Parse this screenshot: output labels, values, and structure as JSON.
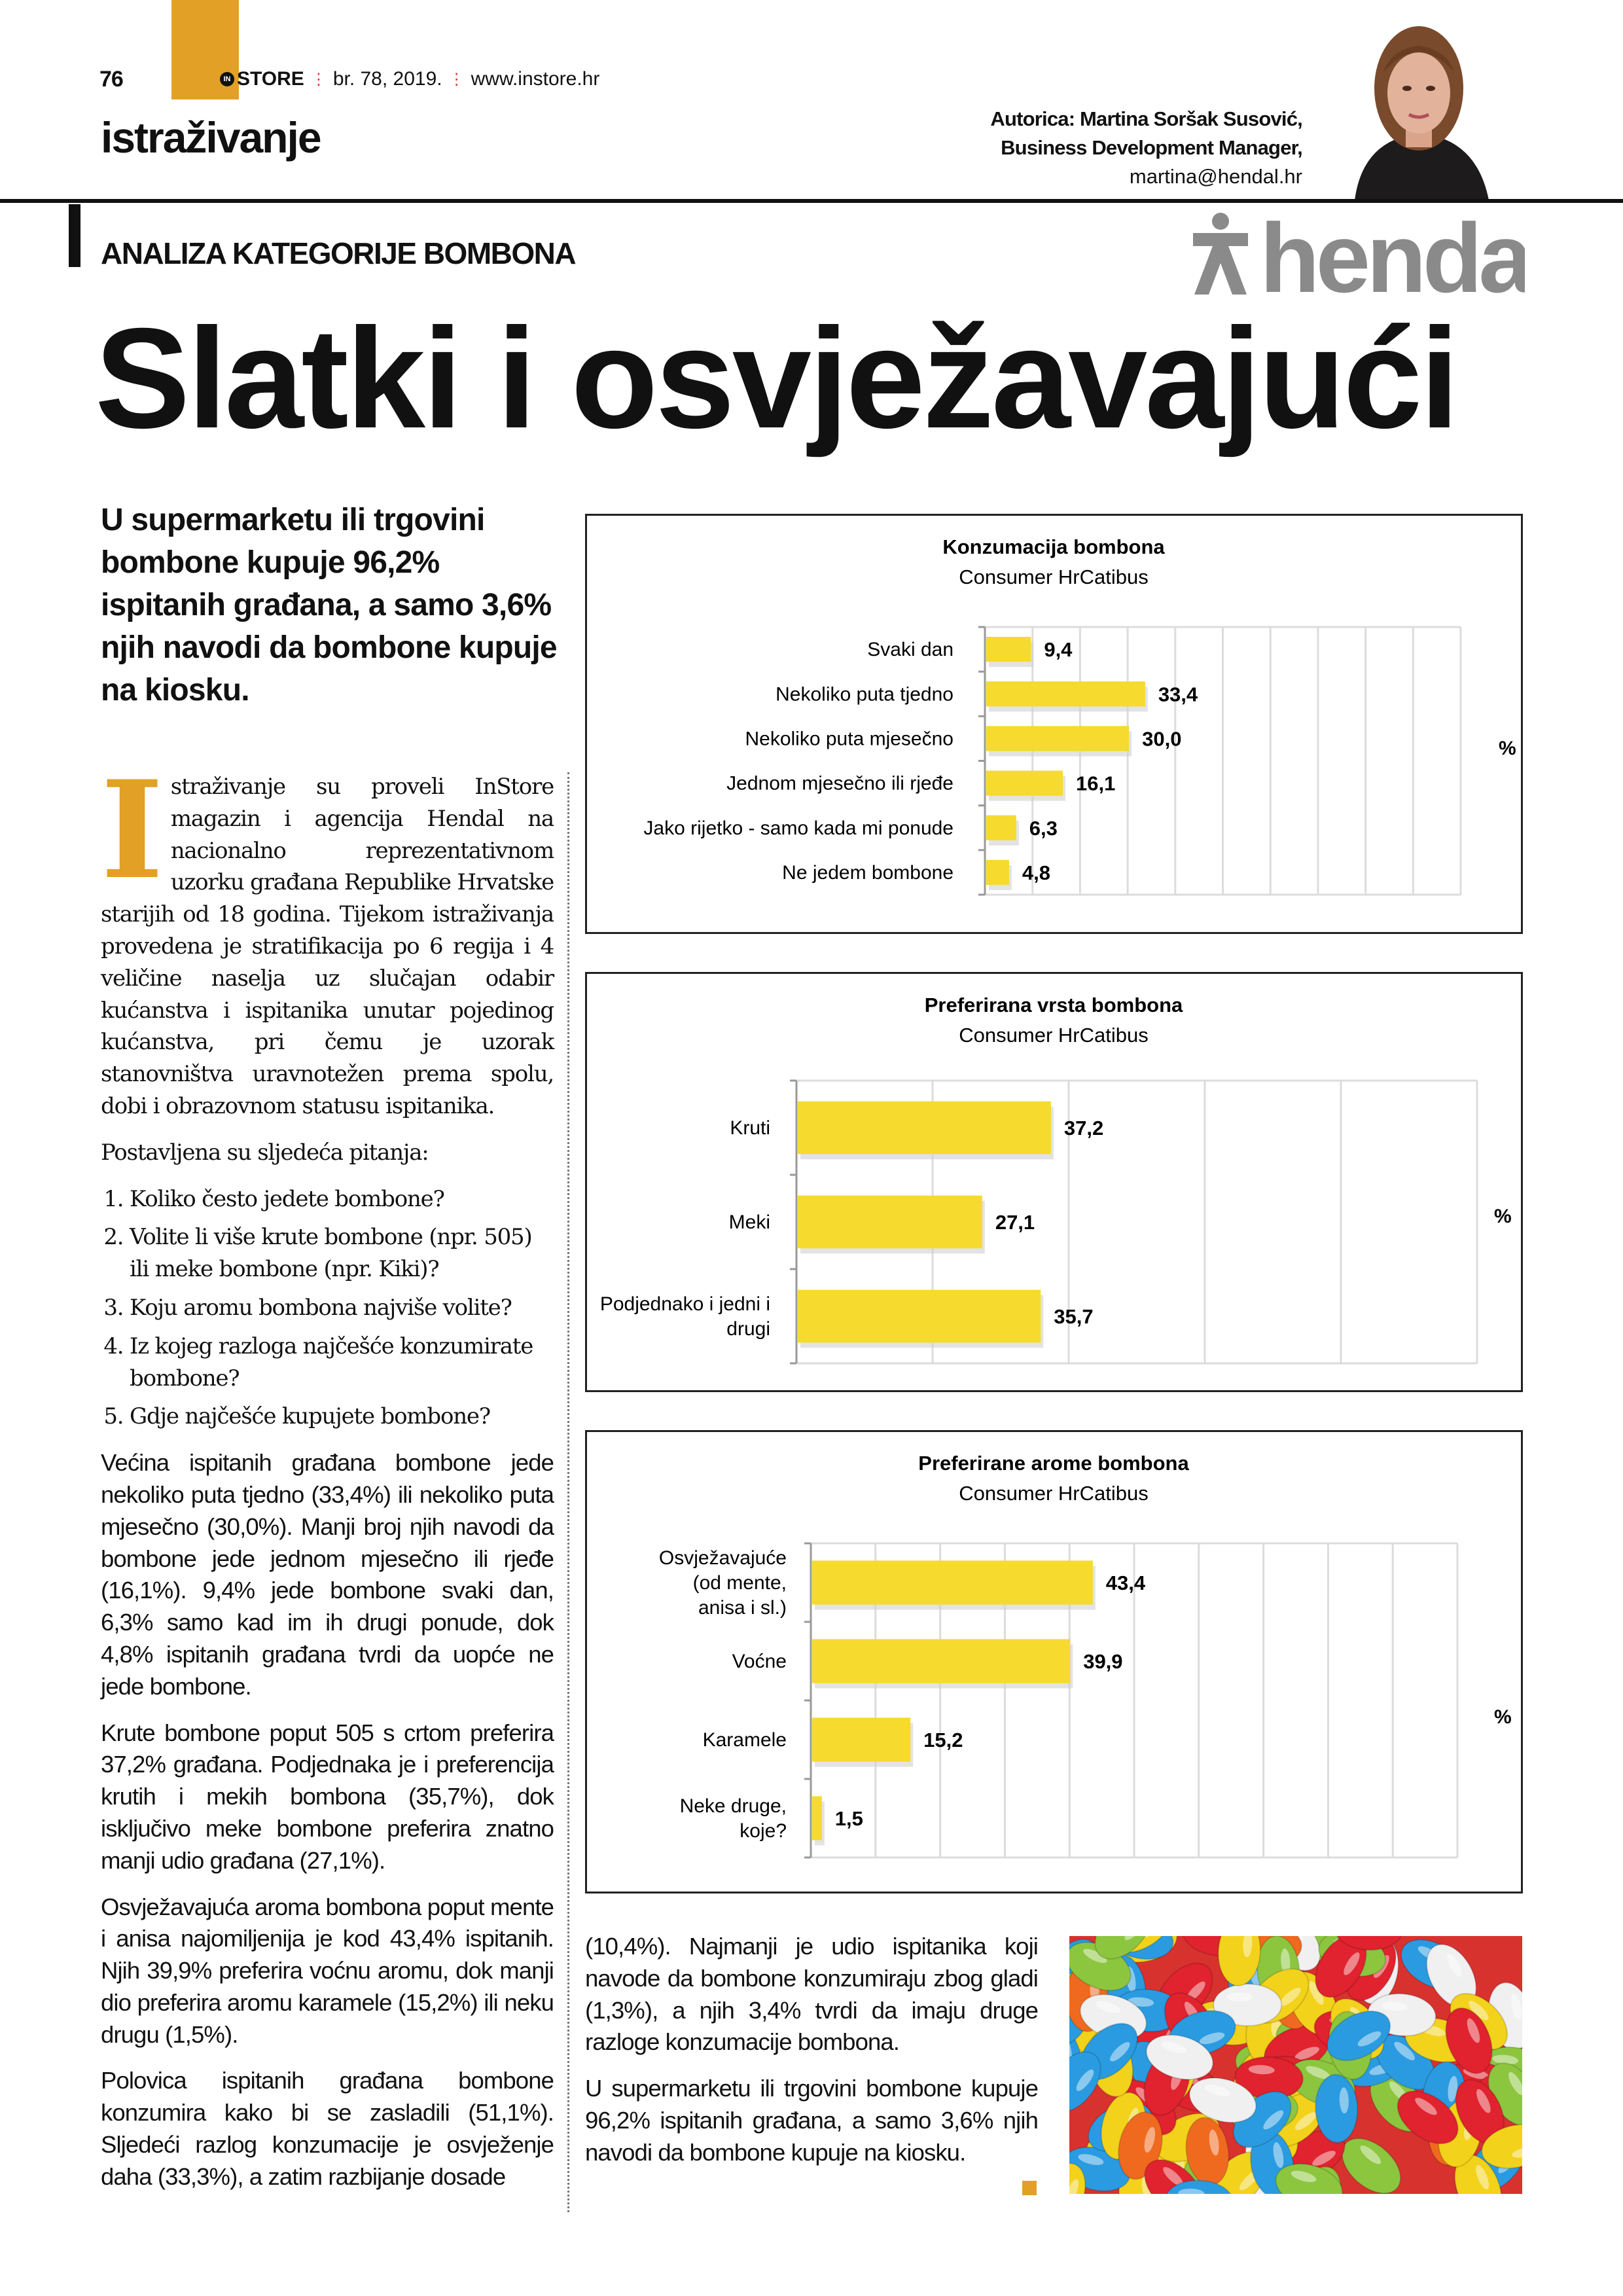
{
  "header": {
    "page_number": "76",
    "magazine_logo": "STORE",
    "logo_badge": "IN",
    "issue": "br. 78, 2019.",
    "website": "www.instore.hr",
    "section": "istraživanje",
    "accent_color": "#e2a026"
  },
  "author": {
    "line1": "Autorica: Martina Soršak Susović,",
    "line2": "Business Development Manager,",
    "email": "martina@hendal.hr"
  },
  "brand_logo": "hendal",
  "kicker": "ANALIZA KATEGORIJE BOMBONA",
  "headline": "Slatki i osvježavajući",
  "lead": "U supermarketu ili trgovini bombone kupuje 96,2% ispitanih građana, a samo 3,6% njih navodi da bombone kupuje na kiosku.",
  "body": {
    "drop_cap": "I",
    "p1": "straživanje su proveli InStore magazin i agencija Hendal na nacionalno reprezentativnom uzorku građana Republike Hrvatske starijih od 18 godina. Tijekom istraživanja provedena je stratifikacija po 6 regija i 4 veličine naselja uz slučajan odabir kućanstva i ispitanika unutar pojedinog kućanstva, pri čemu je uzorak stanovništva uravnotežen prema spolu, dobi i obrazovnom statusu ispitanika.",
    "questions_intro": "Postavljena su sljedeća pitanja:",
    "questions": [
      "Koliko često jedete bombone?",
      "Volite li više krute bombone (npr. 505) ili meke bombone (npr. Kiki)?",
      "Koju aromu bombona najviše volite?",
      "Iz kojeg razloga najčešće konzumirate bombone?",
      "Gdje najčešće kupujete bombone?"
    ],
    "p2": "Većina ispitanih građana bombone jede nekoliko puta tjedno (33,4%) ili nekoliko puta mjesečno (30,0%). Manji broj njih navodi da bombone jede jednom mjesečno ili rjeđe (16,1%). 9,4% jede bombone svaki dan, 6,3% samo kad im ih drugi ponude, dok 4,8% ispitanih građana tvrdi da uopće ne jede bombone.",
    "p3": "Krute bombone poput 505 s crtom preferira 37,2% građana. Podjednaka je i preferencija krutih i mekih bombona (35,7%), dok isključivo meke bombone preferira znatno manji udio građana (27,1%).",
    "p4": "Osvježavajuća aroma bombona poput mente i anisa najomiljenija je kod 43,4% ispitanih. Njih 39,9% preferira voćnu aromu, dok manji dio preferira aromu karamele (15,2%) ili neku drugu (1,5%).",
    "p5": "Polovica ispitanih građana bombone konzumira kako bi se zasladili (51,1%). Sljedeći razlog konzumacije je osvježenje daha (33,3%), a zatim razbijanje dosade",
    "p5_cont": "(10,4%). Najmanji je udio ispitanika koji navode da bombone konzumiraju zbog gladi (1,3%), a njih 3,4% tvrdi da imaju druge razloge konzumacije bombona.",
    "p6": "U supermarketu ili trgovini bombone kupuje 96,2% ispitanih građana, a samo 3,6% njih navodi da bombone kupuje na kiosku."
  },
  "chart_data": [
    {
      "type": "bar",
      "orientation": "horizontal",
      "title": "Konzumacija bombona",
      "subtitle": "Consumer HrCatibus",
      "categories": [
        "Svaki dan",
        "Nekoliko puta tjedno",
        "Nekoliko puta mjesečno",
        "Jednom mjesečno ili rjeđe",
        "Jako rijetko - samo kada mi ponude",
        "Ne jedem bombone"
      ],
      "values": [
        9.4,
        33.4,
        30.0,
        16.1,
        6.3,
        4.8
      ],
      "data_labels": [
        "9,4",
        "33,4",
        "30,0",
        "16,1",
        "6,3",
        "4,8"
      ],
      "unit_label": "%",
      "xlim": [
        0,
        100
      ],
      "grid_step": 10,
      "grid": true,
      "bar_color": "#f6da2e"
    },
    {
      "type": "bar",
      "orientation": "horizontal",
      "title": "Preferirana vrsta bombona",
      "subtitle": "Consumer HrCatibus",
      "categories": [
        "Kruti",
        "Meki",
        "Podjednako i jedni i drugi"
      ],
      "values": [
        37.2,
        27.1,
        35.7
      ],
      "data_labels": [
        "37,2",
        "27,1",
        "35,7"
      ],
      "unit_label": "%",
      "xlim": [
        0,
        100
      ],
      "grid_step": 20,
      "grid": true,
      "bar_color": "#f6da2e"
    },
    {
      "type": "bar",
      "orientation": "horizontal",
      "title": "Preferirane arome bombona",
      "subtitle": "Consumer HrCatibus",
      "categories": [
        "Osvježavajuće (od mente, anisa i sl.)",
        "Voćne",
        "Karamele",
        "Neke druge, koje?"
      ],
      "values": [
        43.4,
        39.9,
        15.2,
        1.5
      ],
      "data_labels": [
        "43,4",
        "39,9",
        "15,2",
        "1,5"
      ],
      "unit_label": "%",
      "xlim": [
        0,
        100
      ],
      "grid_step": 10,
      "grid": true,
      "bar_color": "#f6da2e"
    }
  ]
}
